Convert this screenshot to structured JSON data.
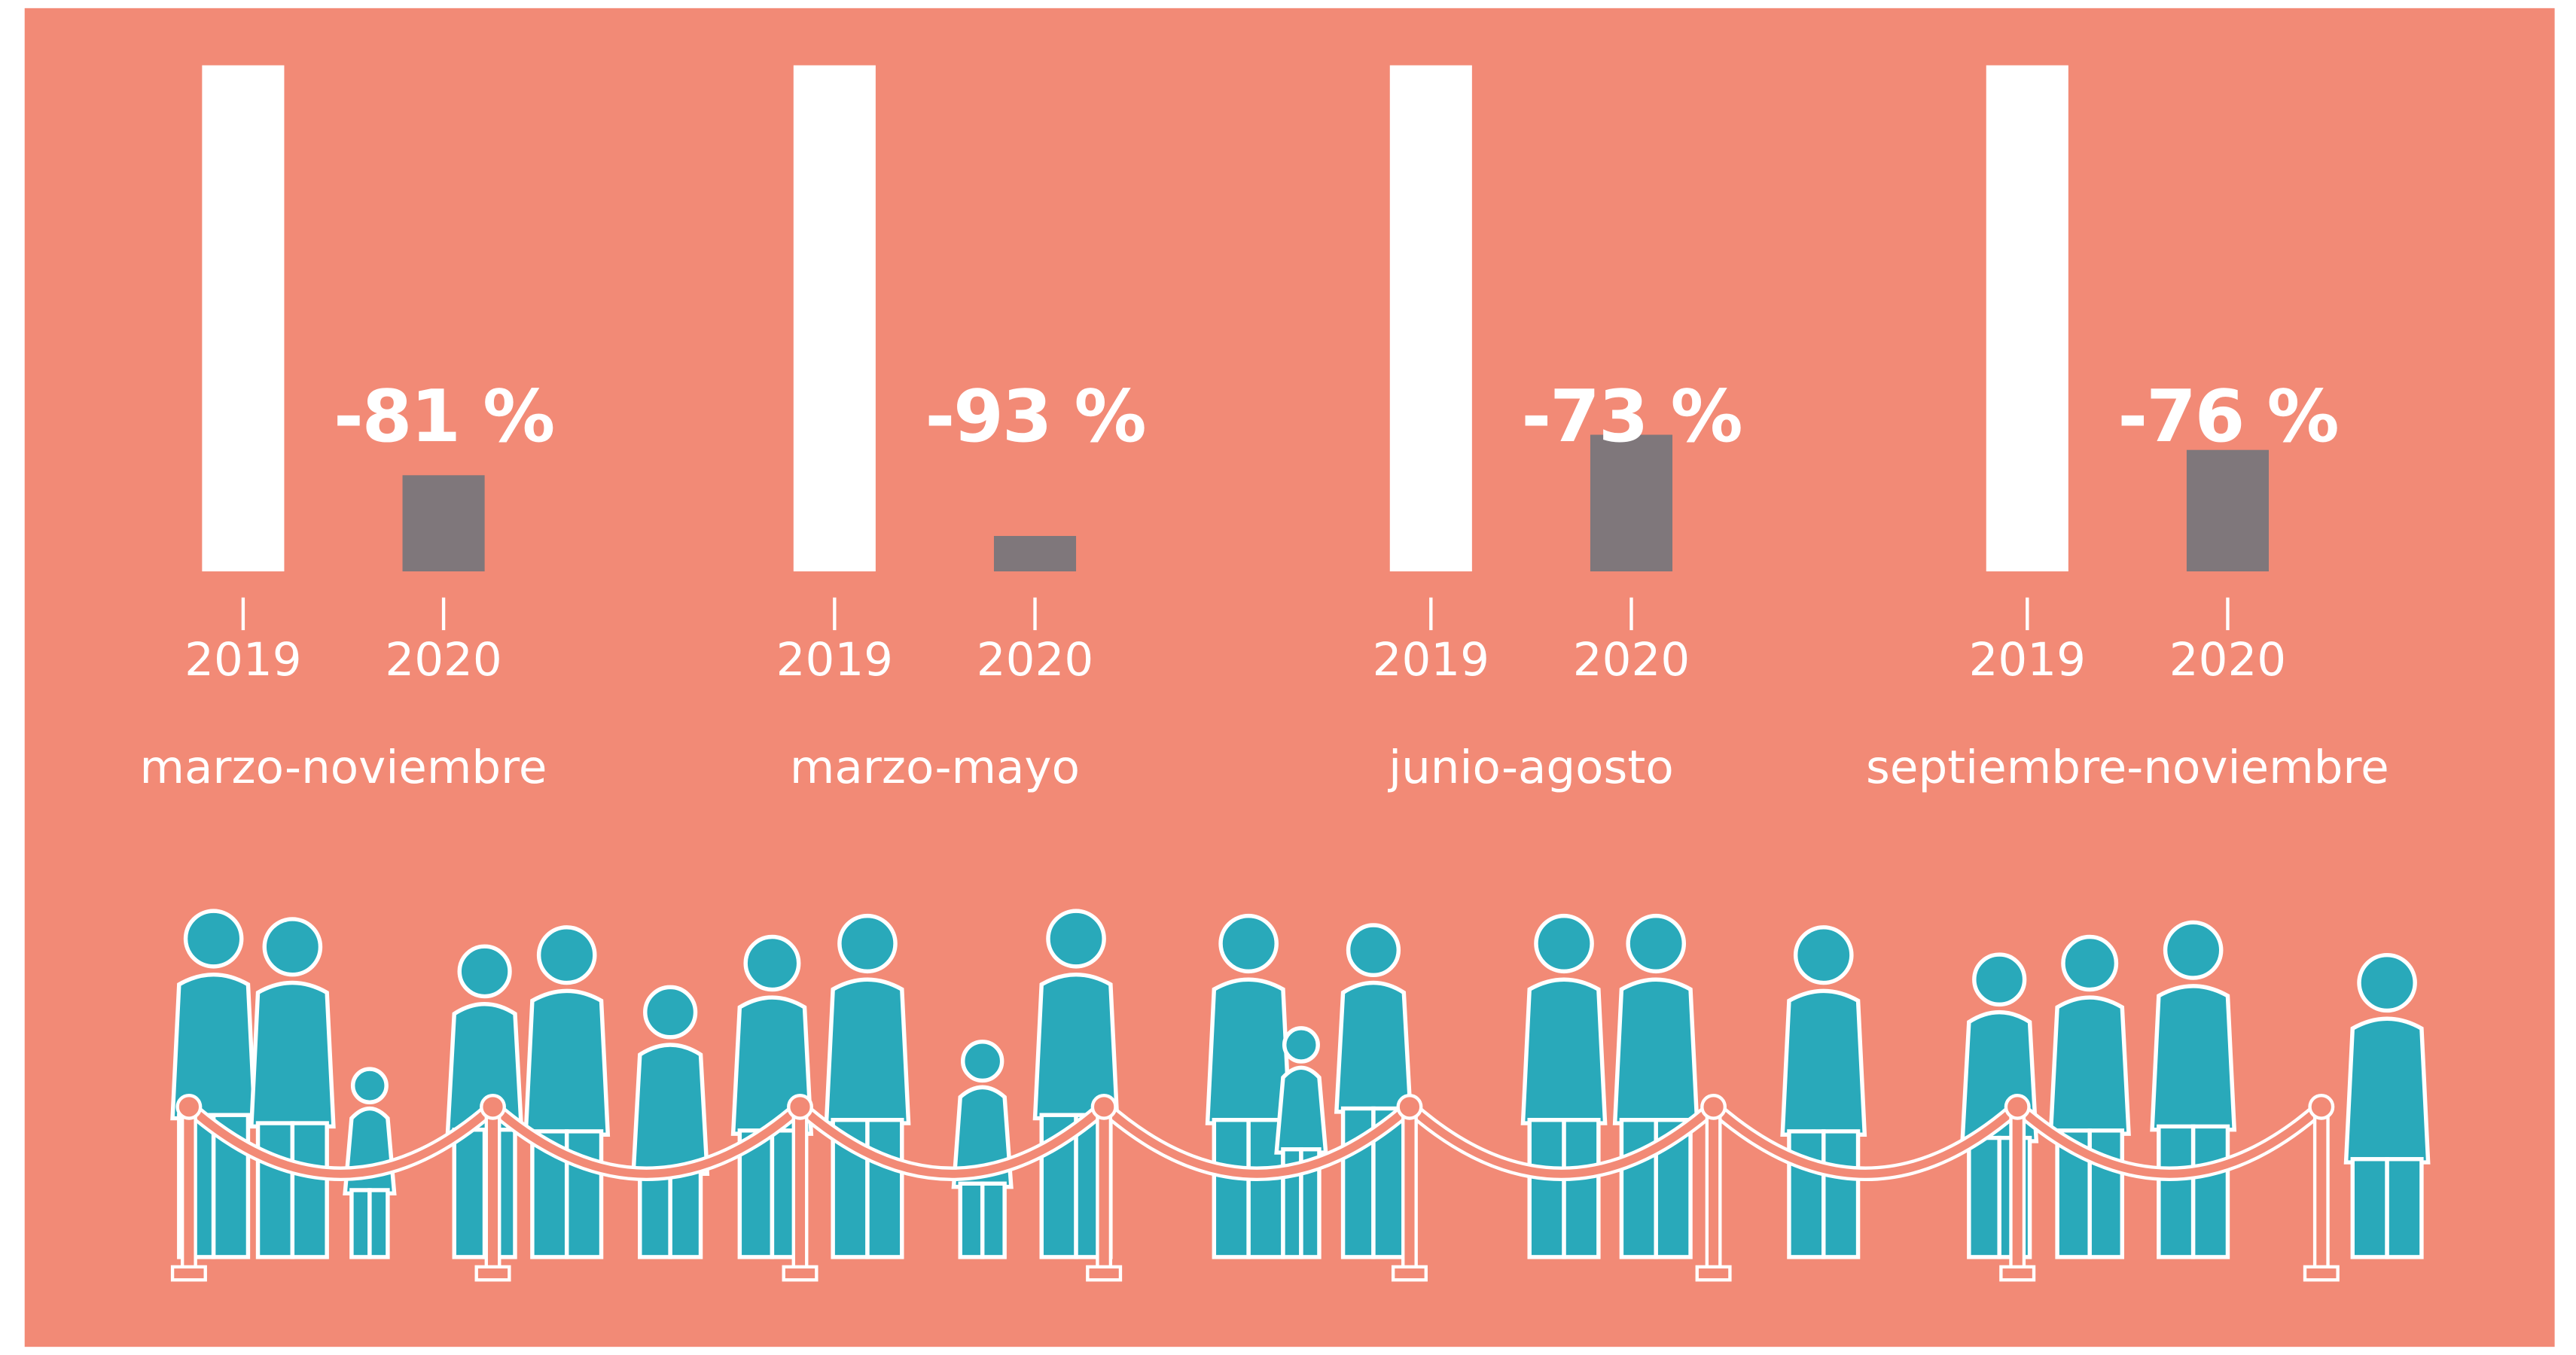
{
  "chart_data": [
    {
      "type": "bar",
      "categories": [
        "2019",
        "2020"
      ],
      "values": [
        100,
        19
      ],
      "annotation": "-81 %",
      "xlabel": "marzo-noviembre",
      "ylim": [
        0,
        100
      ],
      "colors": [
        "#ffffff",
        "#7f777b"
      ]
    },
    {
      "type": "bar",
      "categories": [
        "2019",
        "2020"
      ],
      "values": [
        100,
        7
      ],
      "annotation": "-93 %",
      "xlabel": "marzo-mayo",
      "ylim": [
        0,
        100
      ],
      "colors": [
        "#ffffff",
        "#7f777b"
      ]
    },
    {
      "type": "bar",
      "categories": [
        "2019",
        "2020"
      ],
      "values": [
        100,
        27
      ],
      "annotation": "-73 %",
      "xlabel": "junio-agosto",
      "ylim": [
        0,
        100
      ],
      "colors": [
        "#ffffff",
        "#7f777b"
      ]
    },
    {
      "type": "bar",
      "categories": [
        "2019",
        "2020"
      ],
      "values": [
        100,
        24
      ],
      "annotation": "-76 %",
      "xlabel": "septiembre-noviembre",
      "ylim": [
        0,
        100
      ],
      "colors": [
        "#ffffff",
        "#7f777b"
      ]
    }
  ]
}
